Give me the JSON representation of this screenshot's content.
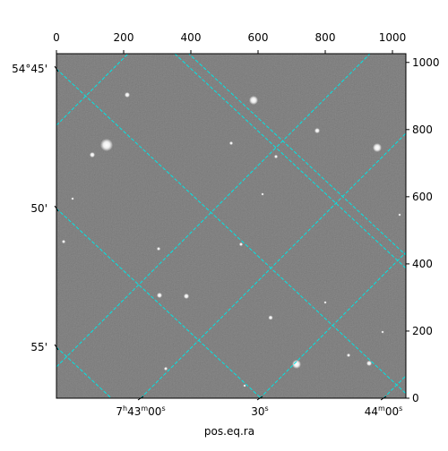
{
  "chart_data": {
    "type": "image",
    "xlabel": "pos.eq.ra",
    "xlim": [
      0,
      1040
    ],
    "xticks": [
      0,
      200,
      400,
      600,
      800,
      1000
    ],
    "ylim": [
      0,
      1026
    ],
    "yticks": [
      0,
      200,
      400,
      600,
      800,
      1000
    ],
    "dec_labels": [
      "54°45'",
      "50'",
      "55'"
    ],
    "ra_labels": [
      "7h43m00s",
      "30s",
      "44m00s"
    ],
    "grid_color": "#00e5e5"
  }
}
